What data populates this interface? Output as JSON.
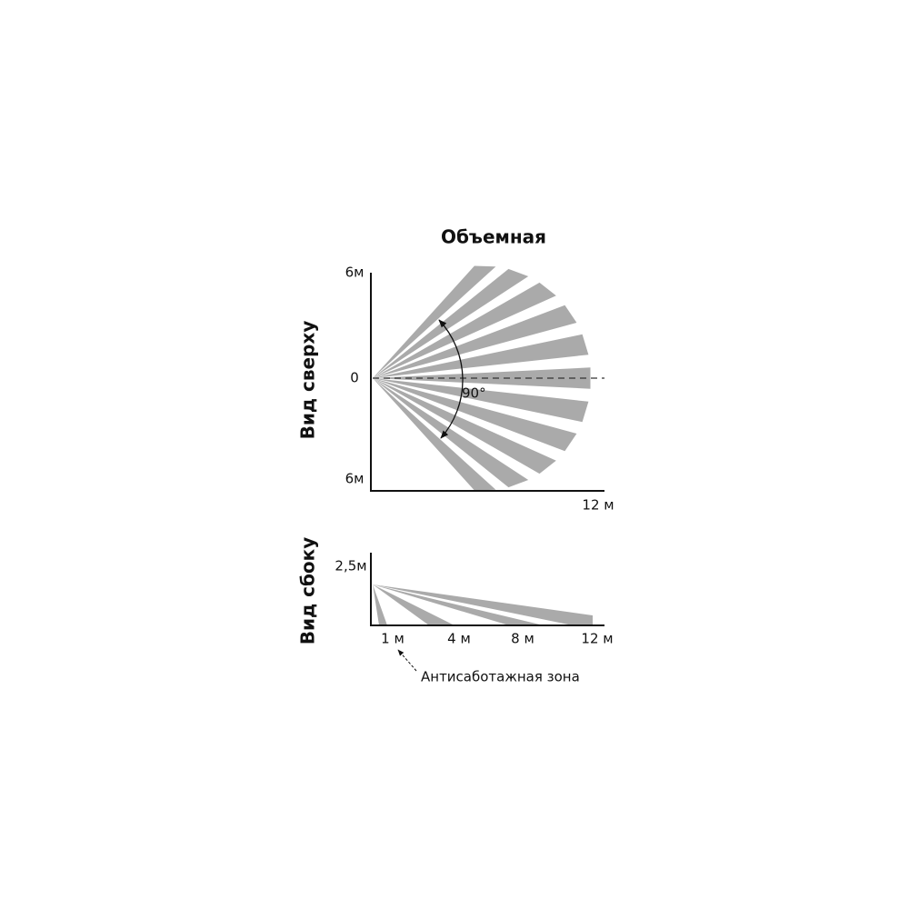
{
  "header": {
    "title": "Объемная"
  },
  "top_view": {
    "label": "Вид сверху",
    "y_top": "6м",
    "y_zero": "0",
    "y_bottom": "6м",
    "x_end": "12 м",
    "angle": "90°"
  },
  "side_view": {
    "label": "Вид сбоку",
    "y_top": "2,5м",
    "x_ticks": [
      "1 м",
      "4 м",
      "8 м",
      "12 м"
    ],
    "note": "Антисаботажная зона"
  }
}
